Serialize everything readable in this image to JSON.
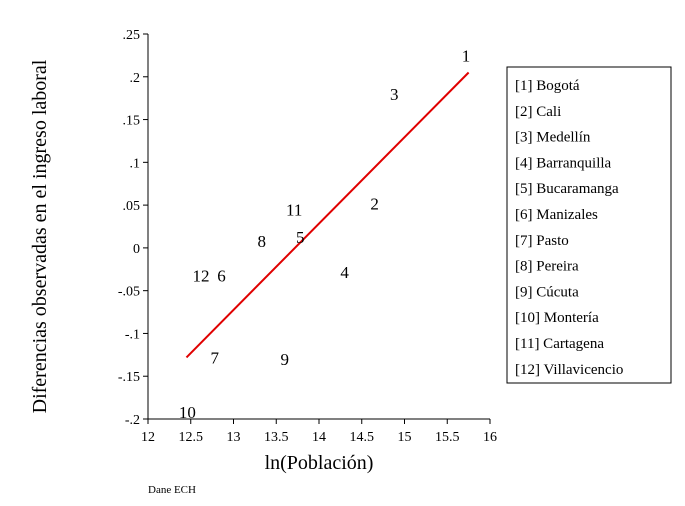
{
  "chart_data": {
    "type": "scatter",
    "xlabel": "ln(Población)",
    "ylabel": "Diferencias observadas en el ingreso laboral",
    "xlim": [
      12,
      16
    ],
    "ylim": [
      -0.2,
      0.25
    ],
    "xticks": [
      12,
      12.5,
      13,
      13.5,
      14,
      14.5,
      15,
      15.5,
      16
    ],
    "xtick_labels": [
      "12",
      "12.5",
      "13",
      "13.5",
      "14",
      "14.5",
      "15",
      "15.5",
      "16"
    ],
    "yticks": [
      -0.2,
      -0.15,
      -0.1,
      -0.05,
      0,
      0.05,
      0.1,
      0.15,
      0.2,
      0.25
    ],
    "ytick_labels": [
      "-.2",
      "-.15",
      "-.1",
      "-.05",
      "0",
      ".05",
      ".1",
      ".15",
      ".2",
      ".25"
    ],
    "points": [
      {
        "label": "1",
        "x": 15.72,
        "y": 0.225
      },
      {
        "label": "2",
        "x": 14.65,
        "y": 0.052
      },
      {
        "label": "3",
        "x": 14.88,
        "y": 0.18
      },
      {
        "label": "4",
        "x": 14.3,
        "y": -0.028
      },
      {
        "label": "5",
        "x": 13.78,
        "y": 0.013
      },
      {
        "label": "6",
        "x": 12.86,
        "y": -0.032
      },
      {
        "label": "7",
        "x": 12.78,
        "y": -0.128
      },
      {
        "label": "8",
        "x": 13.33,
        "y": 0.008
      },
      {
        "label": "9",
        "x": 13.6,
        "y": -0.13
      },
      {
        "label": "10",
        "x": 12.46,
        "y": -0.192
      },
      {
        "label": "11",
        "x": 13.71,
        "y": 0.045
      },
      {
        "label": "12",
        "x": 12.62,
        "y": -0.032
      }
    ],
    "fit_line": {
      "x": [
        12.45,
        15.75
      ],
      "y": [
        -0.128,
        0.205
      ],
      "color": "#e00000"
    },
    "grid": false,
    "legend_position": "right",
    "legend": [
      "[1] Bogotá",
      "[2] Cali",
      "[3] Medellín",
      "[4] Barranquilla",
      "[5] Bucaramanga",
      "[6] Manizales",
      "[7] Pasto",
      "[8] Pereira",
      "[9] Cúcuta",
      "[10] Montería",
      "[11] Cartagena",
      "[12] Villavicencio"
    ]
  },
  "source_note": "Dane ECH"
}
